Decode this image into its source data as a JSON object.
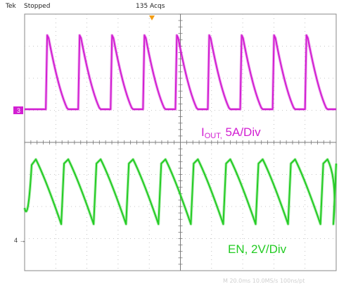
{
  "header": {
    "brand": "Tek",
    "status": "Stopped",
    "acquisitions": "135 Acqs"
  },
  "channels": [
    {
      "marker": "3",
      "color": "#d21fd2",
      "label_main": "I",
      "label_sub": "OUT,",
      "label_scale": " 5A/Div"
    },
    {
      "marker": "4",
      "color": "#24cc24",
      "label": "EN, 2V/Div"
    }
  ],
  "footer": {
    "readout": "M 20.0ms 10.0MS/s   100ns/pt"
  },
  "colors": {
    "trigger": "#f39c12",
    "grid": "#9a9a9a",
    "background": "#ffffff"
  },
  "chart_data": [
    {
      "type": "line",
      "name": "I_OUT",
      "y_scale": "5A/Div",
      "divisions_x": 10,
      "divisions_y": 8,
      "pulses": [
        {
          "rise_div": 0.68,
          "peak_div": 6.3
        },
        {
          "rise_div": 1.72,
          "peak_div": 6.3
        },
        {
          "rise_div": 2.76,
          "peak_div": 6.3
        },
        {
          "rise_div": 3.8,
          "peak_div": 6.3
        },
        {
          "rise_div": 4.84,
          "peak_div": 6.3
        },
        {
          "rise_div": 5.88,
          "peak_div": 6.3
        },
        {
          "rise_div": 6.92,
          "peak_div": 6.3
        },
        {
          "rise_div": 7.96,
          "peak_div": 6.3
        },
        {
          "rise_div": 9.0,
          "peak_div": 6.3
        }
      ]
    },
    {
      "type": "line",
      "name": "EN",
      "y_scale": "2V/Div",
      "period_div": 1.04,
      "min_div": -0.3,
      "max_div": 1.9
    }
  ]
}
